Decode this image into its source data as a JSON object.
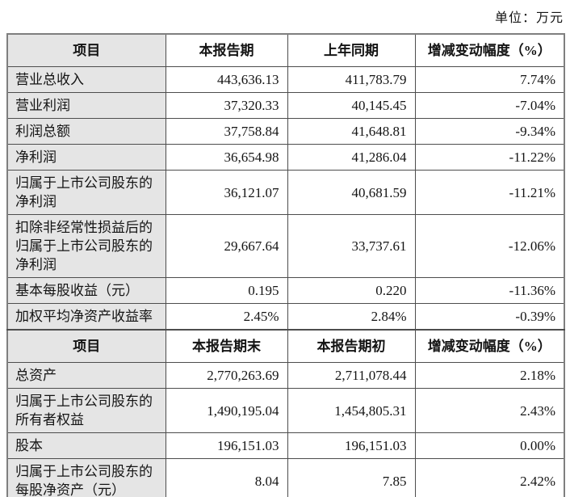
{
  "page": {
    "unit_label": "单位：万元"
  },
  "table": {
    "section1": {
      "header": [
        "项目",
        "本报告期",
        "上年同期",
        "增减变动幅度（%）"
      ],
      "rows": [
        {
          "label": "营业总收入",
          "current": "443,636.13",
          "prior": "411,783.79",
          "change": "7.74%"
        },
        {
          "label": "营业利润",
          "current": "37,320.33",
          "prior": "40,145.45",
          "change": "-7.04%"
        },
        {
          "label": "利润总额",
          "current": "37,758.84",
          "prior": "41,648.81",
          "change": "-9.34%"
        },
        {
          "label": "净利润",
          "current": "36,654.98",
          "prior": "41,286.04",
          "change": "-11.22%"
        },
        {
          "label": "归属于上市公司股东的净利润",
          "current": "36,121.07",
          "prior": "40,681.59",
          "change": "-11.21%"
        },
        {
          "label": "扣除非经常性损益后的归属于上市公司股东的净利润",
          "current": "29,667.64",
          "prior": "33,737.61",
          "change": "-12.06%"
        },
        {
          "label": "基本每股收益（元）",
          "current": "0.195",
          "prior": "0.220",
          "change": "-11.36%"
        },
        {
          "label": "加权平均净资产收益率",
          "current": "2.45%",
          "prior": "2.84%",
          "change": "-0.39%"
        }
      ]
    },
    "section2": {
      "header": [
        "项目",
        "本报告期末",
        "本报告期初",
        "增减变动幅度（%）"
      ],
      "rows": [
        {
          "label": "总资产",
          "current": "2,770,263.69",
          "prior": "2,711,078.44",
          "change": "2.18%"
        },
        {
          "label": "归属于上市公司股东的所有者权益",
          "current": "1,490,195.04",
          "prior": "1,454,805.31",
          "change": "2.43%"
        },
        {
          "label": "股本",
          "current": "196,151.03",
          "prior": "196,151.03",
          "change": "0.00%"
        },
        {
          "label": "归属于上市公司股东的每股净资产（元）",
          "current": "8.04",
          "prior": "7.85",
          "change": "2.42%"
        }
      ]
    }
  }
}
